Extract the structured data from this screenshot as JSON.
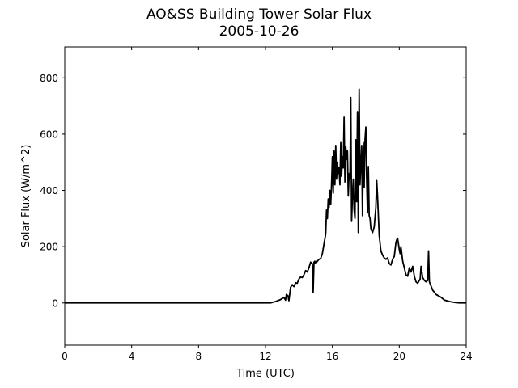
{
  "chart_data": {
    "type": "line",
    "title": "AO&SS Building Tower Solar Flux",
    "subtitle": "2005-10-26",
    "xlabel": "Time (UTC)",
    "ylabel": "Solar Flux (W/m^2)",
    "xlim": [
      0,
      24
    ],
    "ylim": [
      -150,
      910
    ],
    "xticks": [
      0,
      4,
      8,
      12,
      16,
      20,
      24
    ],
    "yticks": [
      0,
      200,
      400,
      600,
      800
    ],
    "grid": false,
    "legend": false,
    "line_color": "#000000",
    "series": [
      {
        "x": [
          0,
          12.3,
          12.6,
          12.9,
          13.1,
          13.2,
          13.25,
          13.35,
          13.4,
          13.5,
          13.6,
          13.7,
          13.8,
          13.9,
          14.0,
          14.1,
          14.2,
          14.3,
          14.4,
          14.5,
          14.6,
          14.7,
          14.8,
          14.85,
          14.9,
          14.95,
          15.0,
          15.1,
          15.2,
          15.3,
          15.4,
          15.5,
          15.6,
          15.65,
          15.7,
          15.75,
          15.8,
          15.85,
          15.9,
          15.95,
          16.0,
          16.05,
          16.1,
          16.15,
          16.2,
          16.25,
          16.3,
          16.35,
          16.4,
          16.45,
          16.5,
          16.55,
          16.6,
          16.65,
          16.7,
          16.75,
          16.8,
          16.85,
          16.9,
          16.95,
          17.0,
          17.05,
          17.1,
          17.15,
          17.2,
          17.25,
          17.3,
          17.35,
          17.4,
          17.45,
          17.5,
          17.55,
          17.6,
          17.65,
          17.7,
          17.75,
          17.8,
          17.85,
          17.9,
          17.95,
          18.0,
          18.05,
          18.1,
          18.15,
          18.2,
          18.25,
          18.3,
          18.4,
          18.5,
          18.6,
          18.65,
          18.7,
          18.8,
          18.9,
          19.0,
          19.1,
          19.2,
          19.3,
          19.4,
          19.5,
          19.6,
          19.7,
          19.8,
          19.85,
          19.9,
          20.0,
          20.05,
          20.1,
          20.2,
          20.3,
          20.4,
          20.5,
          20.6,
          20.7,
          20.8,
          20.9,
          21.0,
          21.1,
          21.2,
          21.25,
          21.3,
          21.4,
          21.5,
          21.6,
          21.7,
          21.75,
          21.8,
          21.9,
          22.0,
          22.2,
          22.5,
          22.7,
          23.0,
          23.3,
          23.6,
          24.0
        ],
        "y": [
          0,
          0,
          5,
          12,
          20,
          10,
          30,
          25,
          8,
          55,
          65,
          58,
          72,
          70,
          85,
          92,
          90,
          100,
          115,
          110,
          125,
          145,
          140,
          38,
          145,
          148,
          140,
          148,
          155,
          158,
          175,
          210,
          245,
          330,
          300,
          370,
          340,
          400,
          350,
          420,
          520,
          390,
          540,
          420,
          560,
          440,
          500,
          460,
          480,
          420,
          570,
          450,
          520,
          480,
          660,
          430,
          555,
          510,
          540,
          380,
          460,
          440,
          730,
          290,
          380,
          440,
          330,
          300,
          580,
          360,
          680,
          250,
          760,
          420,
          490,
          560,
          310,
          570,
          410,
          580,
          625,
          440,
          320,
          485,
          310,
          300,
          265,
          250,
          270,
          340,
          435,
          380,
          240,
          185,
          170,
          160,
          155,
          160,
          140,
          135,
          155,
          165,
          215,
          225,
          230,
          190,
          175,
          200,
          150,
          125,
          100,
          95,
          125,
          110,
          130,
          95,
          75,
          70,
          80,
          85,
          130,
          90,
          80,
          75,
          80,
          185,
          75,
          60,
          45,
          30,
          20,
          10,
          5,
          2,
          0,
          0
        ]
      }
    ]
  }
}
